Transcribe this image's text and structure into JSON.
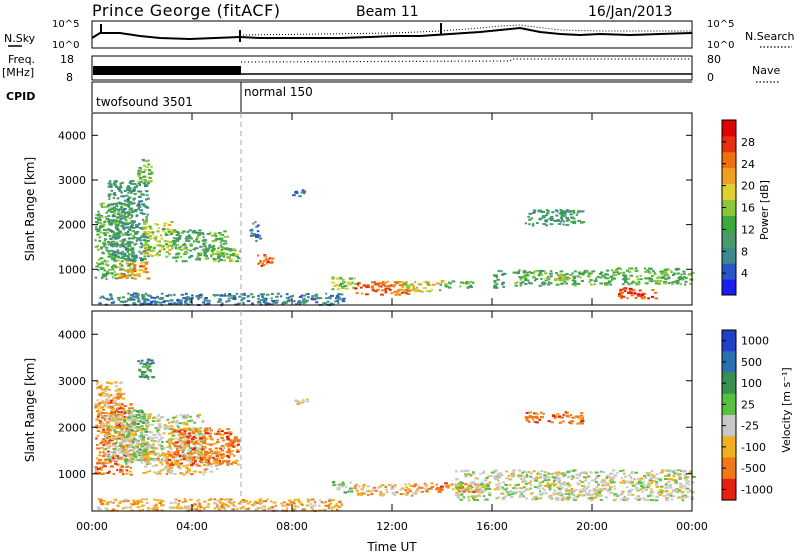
{
  "header": {
    "title": "Prince George (fitACF)",
    "beam": "Beam 11",
    "date": "16/Jan/2013"
  },
  "strip": {
    "nsky_label": "N.Sky",
    "nsearch_label": "N.Search",
    "freq_label": "Freq.",
    "freq_unit": "[MHz]",
    "nave_label": "Nave",
    "cpid_label": "CPID",
    "noise_ticks_left": [
      "10^5",
      "10^0"
    ],
    "noise_ticks_right": [
      "10^5",
      "10^0"
    ],
    "freq_ticks": [
      "18",
      "8"
    ],
    "nave_ticks": [
      "80",
      "0"
    ],
    "cpid_modes": [
      "twofsound 3501",
      "normal 150"
    ]
  },
  "chart_data": [
    {
      "type": "heatmap",
      "name": "power",
      "ylabel": "Slant Range [km]",
      "yticks": [
        "4000",
        "3000",
        "2000",
        "1000"
      ],
      "ylim": [
        200,
        4500
      ],
      "xlim": [
        0,
        24
      ],
      "colorbar": {
        "label": "Power [dB]",
        "ticks": [
          "28",
          "24",
          "20",
          "16",
          "12",
          "8",
          "4"
        ],
        "range": [
          0,
          32
        ],
        "colors": [
          "#1c1cf0",
          "#2a55c8",
          "#3a8a8a",
          "#4a9a6a",
          "#3aaa3a",
          "#8ac83a",
          "#e0d030",
          "#f0a020",
          "#f07010",
          "#e83010",
          "#e00000"
        ]
      },
      "regions": [
        {
          "x": [
            0.1,
            1.6
          ],
          "y": [
            800,
            2500
          ],
          "v": 13
        },
        {
          "x": [
            0.6,
            2.2
          ],
          "y": [
            1200,
            3000
          ],
          "v": 9
        },
        {
          "x": [
            1.8,
            2.4
          ],
          "y": [
            2900,
            3500
          ],
          "v": 14
        },
        {
          "x": [
            1.0,
            2.2
          ],
          "y": [
            800,
            1200
          ],
          "v": 23
        },
        {
          "x": [
            2.0,
            3.2
          ],
          "y": [
            1300,
            2100
          ],
          "v": 17
        },
        {
          "x": [
            3.2,
            5.4
          ],
          "y": [
            1200,
            1900
          ],
          "v": 12
        },
        {
          "x": [
            4.8,
            6.0
          ],
          "y": [
            1200,
            1500
          ],
          "v": 15
        },
        {
          "x": [
            6.6,
            7.2
          ],
          "y": [
            1050,
            1350
          ],
          "v": 26
        },
        {
          "x": [
            6.3,
            6.7
          ],
          "y": [
            1650,
            2100
          ],
          "v": 6
        },
        {
          "x": [
            8.0,
            8.6
          ],
          "y": [
            2650,
            2800
          ],
          "v": 5
        },
        {
          "x": [
            9.5,
            10.5
          ],
          "y": [
            550,
            850
          ],
          "v": 16
        },
        {
          "x": [
            10.4,
            12.6
          ],
          "y": [
            450,
            750
          ],
          "v": 26
        },
        {
          "x": [
            12.4,
            14.0
          ],
          "y": [
            520,
            760
          ],
          "v": 18
        },
        {
          "x": [
            14.0,
            15.2
          ],
          "y": [
            600,
            760
          ],
          "v": 12
        },
        {
          "x": [
            16.0,
            16.5
          ],
          "y": [
            600,
            1000
          ],
          "v": 11
        },
        {
          "x": [
            16.8,
            20.8
          ],
          "y": [
            650,
            1000
          ],
          "v": 12
        },
        {
          "x": [
            18.0,
            19.0
          ],
          "y": [
            780,
            920
          ],
          "v": 18
        },
        {
          "x": [
            17.3,
            19.6
          ],
          "y": [
            2000,
            2350
          ],
          "v": 10
        },
        {
          "x": [
            20.8,
            24.0
          ],
          "y": [
            680,
            1050
          ],
          "v": 13
        },
        {
          "x": [
            21.0,
            22.5
          ],
          "y": [
            350,
            600
          ],
          "v": 27
        },
        {
          "x": [
            0.2,
            10.0
          ],
          "y": [
            220,
            480
          ],
          "v": 7
        }
      ]
    },
    {
      "type": "heatmap",
      "name": "velocity",
      "xlabel": "Time UT",
      "ylabel": "Slant Range [km]",
      "yticks": [
        "4000",
        "3000",
        "2000",
        "1000"
      ],
      "xticks": [
        "00:00",
        "04:00",
        "08:00",
        "12:00",
        "16:00",
        "20:00",
        "00:00"
      ],
      "ylim": [
        200,
        4500
      ],
      "xlim": [
        0,
        24
      ],
      "colorbar": {
        "label": "Velocity [m s⁻¹]",
        "ticks": [
          "1000",
          "500",
          "100",
          "25",
          "-25",
          "-100",
          "-500",
          "-1000"
        ],
        "bands": [
          "#2040c8",
          "#2a70b0",
          "#3a9050",
          "#58c040",
          "#c8c8c8",
          "#f0b020",
          "#f07818",
          "#e82010"
        ]
      },
      "regions": [
        {
          "x": [
            0.1,
            1.6
          ],
          "y": [
            1000,
            2600
          ],
          "v": 6
        },
        {
          "x": [
            0.1,
            1.2
          ],
          "y": [
            2000,
            3000
          ],
          "v": 5
        },
        {
          "x": [
            1.2,
            2.2
          ],
          "y": [
            1200,
            2400
          ],
          "v": 3
        },
        {
          "x": [
            1.8,
            2.4
          ],
          "y": [
            3000,
            3500
          ],
          "v": 2
        },
        {
          "x": [
            0.5,
            4.5
          ],
          "y": [
            1300,
            2300
          ],
          "v": 4
        },
        {
          "x": [
            2.0,
            5.0
          ],
          "y": [
            1000,
            1500
          ],
          "v": 5
        },
        {
          "x": [
            3.0,
            5.8
          ],
          "y": [
            1200,
            2000
          ],
          "v": 6
        },
        {
          "x": [
            8.0,
            8.6
          ],
          "y": [
            2500,
            2650
          ],
          "v": 4
        },
        {
          "x": [
            9.6,
            10.4
          ],
          "y": [
            600,
            850
          ],
          "v": 3
        },
        {
          "x": [
            10.4,
            13.4
          ],
          "y": [
            550,
            800
          ],
          "v": 5
        },
        {
          "x": [
            13.2,
            15.6
          ],
          "y": [
            620,
            820
          ],
          "v": 6
        },
        {
          "x": [
            14.5,
            24.0
          ],
          "y": [
            450,
            1100
          ],
          "v": 4
        },
        {
          "x": [
            17.3,
            19.6
          ],
          "y": [
            2100,
            2350
          ],
          "v": 6
        },
        {
          "x": [
            0.2,
            10.0
          ],
          "y": [
            220,
            480
          ],
          "v": 5
        }
      ]
    }
  ]
}
